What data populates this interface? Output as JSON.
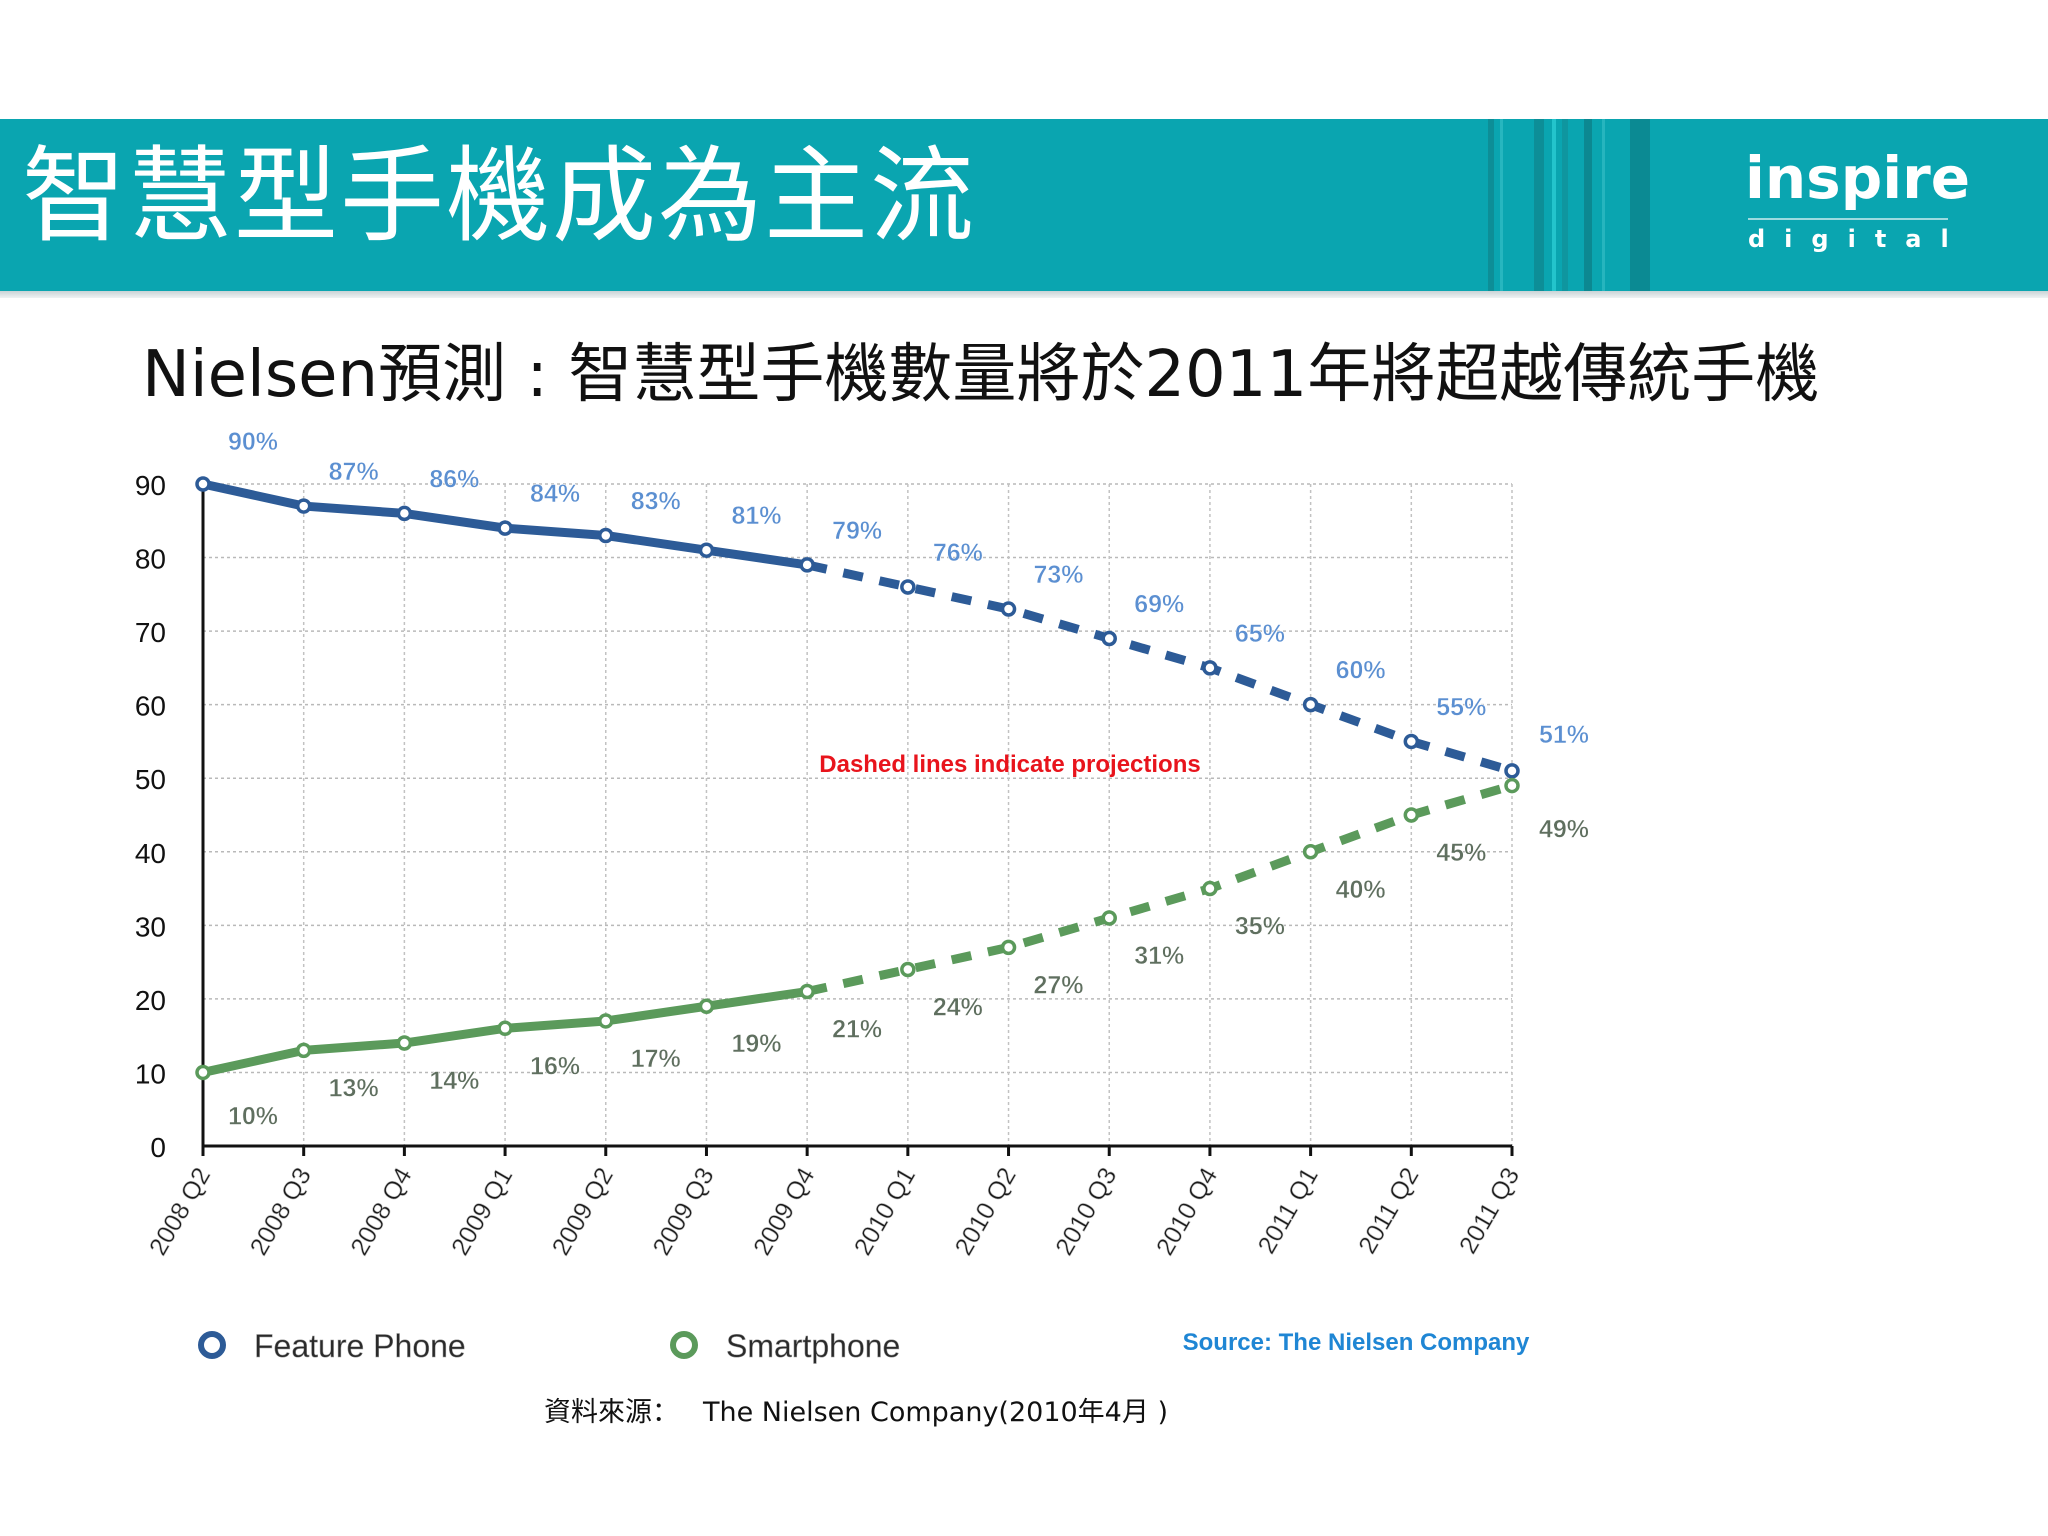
{
  "header": {
    "title": "智慧型手機成為主流",
    "logo_word": "inspire",
    "logo_sub": "digital"
  },
  "subtitle": "Nielsen預測 : 智慧型手機數量將於2011年將超越傳統手機",
  "source_note": {
    "label": "資料來源：",
    "text": "The Nielsen Company(2010年4月 )"
  },
  "colors": {
    "header_teal": "#0aa5b0",
    "feature_phone": "#2d5b97",
    "smartphone": "#5b9a5b",
    "feature_label": "#5b8fd1",
    "smartphone_label": "#5f6f5f",
    "annotation": "#e8141c",
    "source_credit": "#1f86d4"
  },
  "chart_data": {
    "type": "line",
    "categories": [
      "2008 Q2",
      "2008 Q3",
      "2008 Q4",
      "2009 Q1",
      "2009 Q2",
      "2009 Q3",
      "2009 Q4",
      "2010 Q1",
      "2010 Q2",
      "2010 Q3",
      "2010 Q4",
      "2011 Q1",
      "2011 Q2",
      "2011 Q3"
    ],
    "yticks": [
      "0",
      "10",
      "20",
      "30",
      "40",
      "50",
      "60",
      "70",
      "80",
      "90"
    ],
    "ylim": [
      0,
      90
    ],
    "grid": true,
    "projection_start_index": 6,
    "series": [
      {
        "name": "Feature Phone",
        "values": [
          90,
          87,
          86,
          84,
          83,
          81,
          79,
          76,
          73,
          69,
          65,
          60,
          55,
          51
        ],
        "labels": [
          "90%",
          "87%",
          "86%",
          "84%",
          "83%",
          "81%",
          "79%",
          "76%",
          "73%",
          "69%",
          "65%",
          "60%",
          "55%",
          "51%"
        ]
      },
      {
        "name": "Smartphone",
        "values": [
          10,
          13,
          14,
          16,
          17,
          19,
          21,
          24,
          27,
          31,
          35,
          40,
          45,
          49
        ],
        "labels": [
          "10%",
          "13%",
          "14%",
          "16%",
          "17%",
          "19%",
          "21%",
          "24%",
          "27%",
          "31%",
          "35%",
          "40%",
          "45%",
          "49%"
        ]
      }
    ],
    "annotation": "Dashed lines indicate projections",
    "source": "Source: The Nielsen Company",
    "legend_placement": "bottom"
  }
}
